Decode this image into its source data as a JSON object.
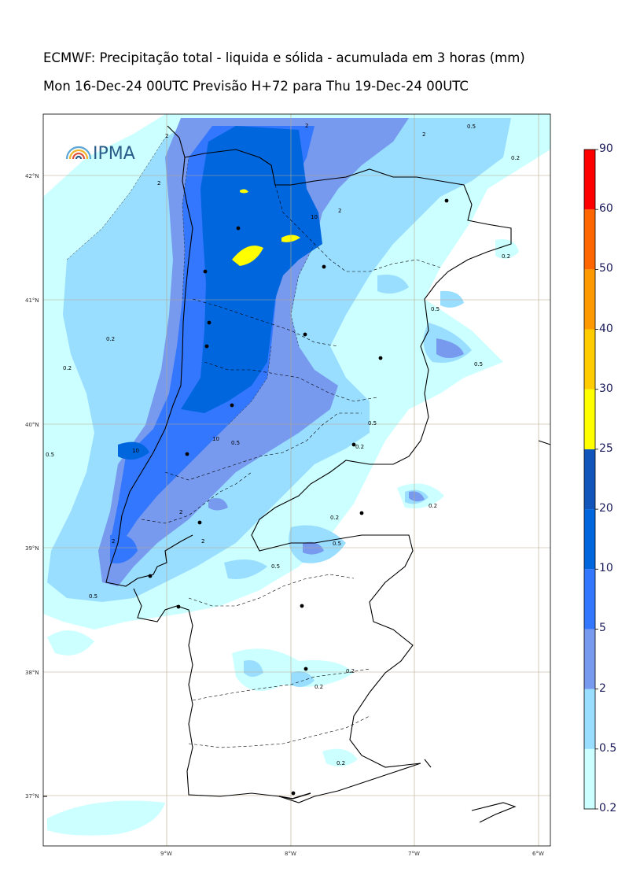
{
  "title": {
    "line1": "ECMWF: Precipitação total - liquida e sólida - acumulada em 3 horas (mm)",
    "line2": "Mon 16-Dec-24 00UTC Previsão H+72 para Thu 19-Dec-24 00UTC"
  },
  "logo": {
    "text": "IPMA",
    "icon": "rainbow-arc-icon"
  },
  "axes": {
    "lon_labels": [
      "9°W",
      "8°W",
      "7°W",
      "6°W"
    ],
    "lat_labels": [
      "42°N",
      "41°N",
      "40°N",
      "39°N",
      "38°N",
      "37°N"
    ]
  },
  "colorbar": {
    "levels": [
      "0.2",
      "0.5",
      "2",
      "5",
      "10",
      "20",
      "25",
      "30",
      "40",
      "50",
      "60",
      "90"
    ],
    "colors": [
      "#ccffff",
      "#99ddff",
      "#7799ee",
      "#3377ff",
      "#0066dd",
      "#1155bb",
      "#ffff00",
      "#ffcc00",
      "#ff9900",
      "#ff6600",
      "#ff0000",
      "#ff00aa"
    ]
  },
  "contour_labels": [
    "0.2",
    "0.5",
    "2",
    "10"
  ],
  "map_colors": {
    "very_light": "#ccffff",
    "light": "#99ddff",
    "medium": "#7799ee",
    "strong": "#3377ff",
    "heavy": "#0066dd",
    "extreme": "#ffff00"
  }
}
